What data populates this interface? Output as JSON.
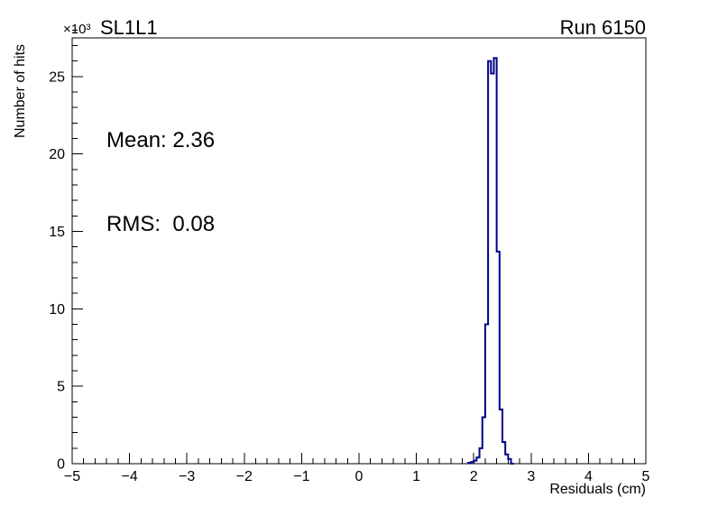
{
  "chart_data": {
    "type": "bar",
    "title": "SL1L1",
    "run_label": "Run 6150",
    "y_multiplier": "×10³",
    "xlabel": "Residuals (cm)",
    "ylabel": "Number of hits",
    "annotations": [
      "Mean: 2.36",
      "RMS:  0.08"
    ],
    "mean": 2.36,
    "rms": 0.08,
    "xlim": [
      -5,
      5
    ],
    "ylim": [
      0,
      27.5
    ],
    "x_tick_values": [
      -5,
      -4,
      -3,
      -2,
      -1,
      0,
      1,
      2,
      3,
      4,
      5
    ],
    "x_tick_labels": [
      "−5",
      "−4",
      "−3",
      "−2",
      "−1",
      "0",
      "1",
      "2",
      "3",
      "4",
      "5"
    ],
    "x_minor_step": 0.2,
    "y_tick_values": [
      0,
      5,
      10,
      15,
      20,
      25
    ],
    "y_tick_labels": [
      "0",
      "5",
      "10",
      "15",
      "20",
      "25"
    ],
    "y_minor_step": 1,
    "line_color": "#00008b",
    "histogram": {
      "bin_start": 1.9,
      "bin_width": 0.05,
      "values_unit": "1e3 hits",
      "values": [
        0.05,
        0.1,
        0.2,
        0.4,
        1.0,
        3.0,
        9.0,
        26.0,
        25.2,
        26.2,
        13.7,
        3.5,
        1.4,
        0.6,
        0.3,
        0.0
      ]
    }
  }
}
